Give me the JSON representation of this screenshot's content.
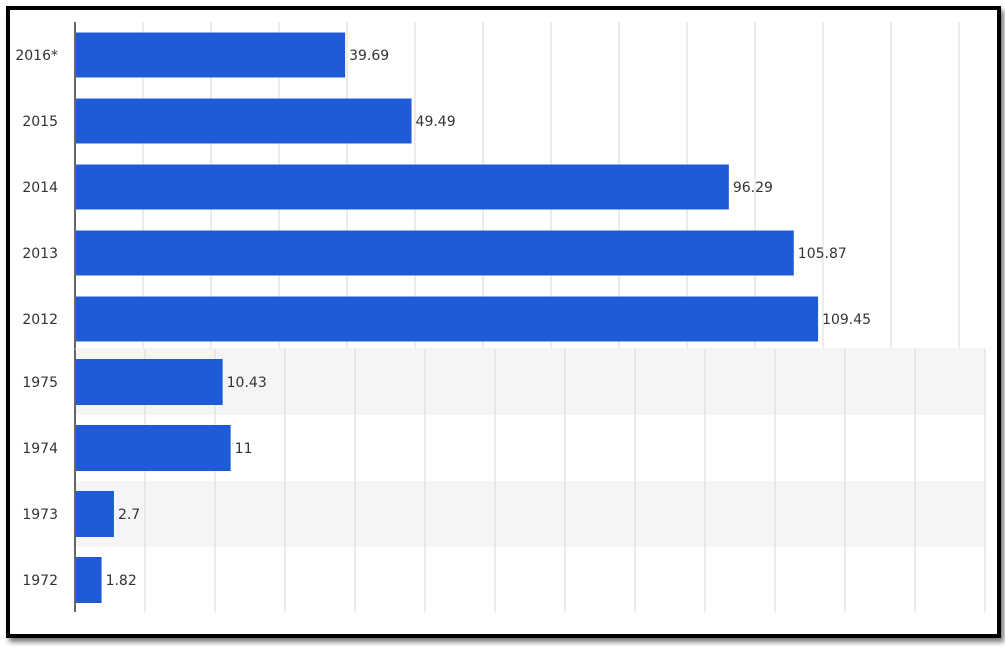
{
  "colors": {
    "bar": "#1f5bd6",
    "band": "#f5f5f5",
    "grid": "#d9d9d9",
    "axis": "#333333",
    "border": "#000000"
  },
  "chart_data": [
    {
      "type": "bar",
      "orientation": "horizontal",
      "categories": [
        "2016*",
        "2015",
        "2014",
        "2013",
        "2012"
      ],
      "values": [
        39.69,
        49.49,
        96.29,
        105.87,
        109.45
      ],
      "data_labels": [
        "39.69",
        "49.49",
        "96.29",
        "105.87",
        "109.45"
      ],
      "xlim": [
        0,
        130
      ],
      "grid": true
    },
    {
      "type": "bar",
      "orientation": "horizontal",
      "categories": [
        "1975",
        "1974",
        "1973",
        "1972"
      ],
      "values": [
        10.43,
        11,
        2.7,
        1.82
      ],
      "data_labels": [
        "10.43",
        "11",
        "2.7",
        "1.82"
      ],
      "xlim": [
        0,
        65
      ],
      "grid": true
    }
  ]
}
